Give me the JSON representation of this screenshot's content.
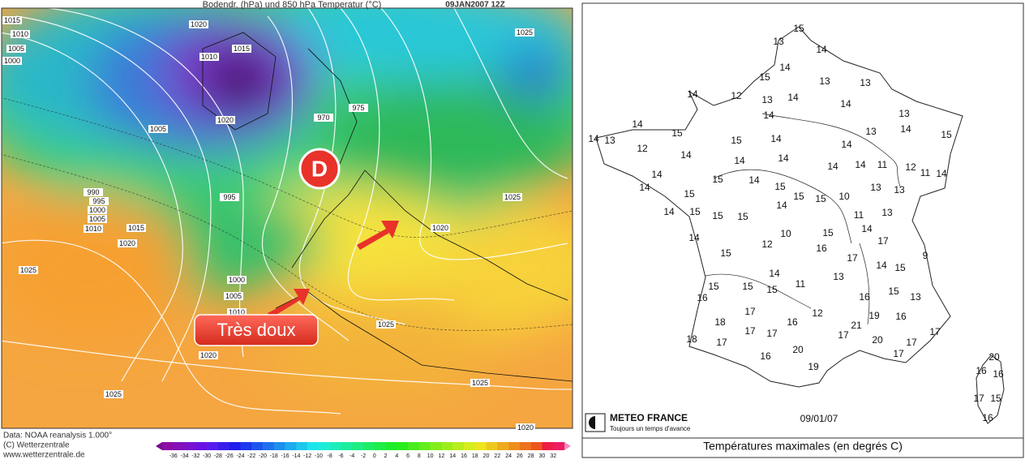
{
  "left_map": {
    "title": "Bodendr. (hPa) und 850 hPa Temperatur (°C)",
    "date": "09JAN2007 12Z",
    "isobar_labels": [
      1015,
      1010,
      1005,
      1000,
      1020,
      1010,
      1015,
      1020,
      1005,
      970,
      975,
      995,
      990,
      995,
      1000,
      1005,
      1010,
      1015,
      1020,
      1025,
      1025,
      1025,
      1020,
      1000,
      1005,
      1010,
      1020,
      1025,
      1025,
      1025,
      1020
    ],
    "low_marker": "D",
    "annotation": "Très doux",
    "credits": [
      "Data: NOAA reanalysis 1.000°",
      "(C) Wetterzentrale",
      "www.wetterzentrale.de"
    ],
    "colorbar_ticks": [
      -36,
      -34,
      -32,
      -30,
      -28,
      -26,
      -24,
      -22,
      -20,
      -18,
      -16,
      -14,
      -12,
      -10,
      -8,
      -6,
      -4,
      -2,
      0,
      2,
      4,
      6,
      8,
      10,
      12,
      14,
      16,
      18,
      20,
      22,
      24,
      26,
      28,
      30,
      32
    ]
  },
  "right_map": {
    "temperatures": [
      15,
      13,
      14,
      14,
      15,
      13,
      13,
      14,
      12,
      13,
      14,
      14,
      13,
      14,
      14,
      14,
      13,
      12,
      15,
      15,
      14,
      13,
      14,
      15,
      14,
      14,
      14,
      14,
      14,
      14,
      11,
      12,
      11,
      14,
      14,
      14,
      15,
      14,
      15,
      15,
      13,
      13,
      15,
      15,
      10,
      14,
      14,
      15,
      15,
      15,
      11,
      13,
      14,
      10,
      15,
      14,
      12,
      16,
      17,
      15,
      17,
      9,
      14,
      15,
      14,
      13,
      15,
      15,
      15,
      11,
      15,
      13,
      16,
      16,
      12,
      17,
      19,
      16,
      18,
      16,
      21,
      17,
      17,
      17,
      17,
      18,
      17,
      20,
      17,
      17,
      20,
      16,
      19,
      20,
      16,
      16,
      17,
      15,
      16
    ],
    "logo": "METEO FRANCE",
    "slogan": "Toujours un temps d'avance",
    "date": "09/01/07",
    "caption": "Températures maximales (en degrés C)"
  }
}
